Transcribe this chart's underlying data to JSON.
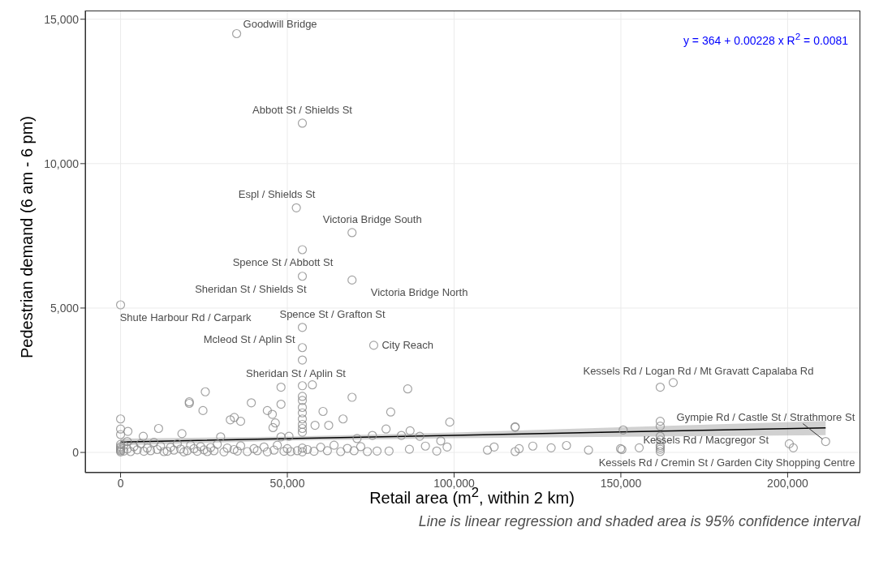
{
  "chart_data": {
    "type": "scatter",
    "xlabel": "Retail area (m$^{2}$, within 2 km)",
    "ylabel": "Pedestrian demand (6 am - 6 pm)",
    "xlim": [
      -10600,
      221800
    ],
    "ylim": [
      -700,
      15300
    ],
    "xticks": [
      0,
      {
        "value": 50000,
        "label": "50,000"
      },
      {
        "value": 100000,
        "label": "100,000"
      },
      {
        "value": 150000,
        "label": "150,000"
      },
      {
        "value": 200000,
        "label": "200,000"
      }
    ],
    "yticks": [
      0,
      {
        "value": 5000,
        "label": "5,000"
      },
      {
        "value": 10000,
        "label": "10,000"
      },
      {
        "value": 15000,
        "label": "15,000"
      }
    ],
    "grid": true,
    "marker": "circle",
    "series": [
      {
        "color": "#8c8c8c",
        "x": [
          34800,
          54500,
          52700,
          69400,
          54500,
          54500,
          69400,
          0,
          54500,
          54500,
          54500,
          75900,
          161800,
          165700,
          211400,
          161800,
          161800,
          0,
          0,
          2200,
          0,
          11400,
          6800,
          18400,
          20600,
          20600,
          24700,
          25400,
          30000,
          39200,
          32900,
          34100,
          36000,
          44000,
          45500,
          46400,
          45700,
          48100,
          48100,
          48100,
          54500,
          57500,
          54500,
          54500,
          54500,
          54500,
          54500,
          54500,
          54500,
          54500,
          60700,
          58300,
          62400,
          66700,
          50500,
          69400,
          86100,
          81000,
          98700,
          79600,
          86800,
          75500,
          70900,
          84200,
          89700,
          96000,
          118300,
          118300,
          91400,
          97900,
          94800,
          86600,
          80500,
          76900,
          110000,
          112000,
          118300,
          119500,
          123600,
          129100,
          133700,
          140300,
          150700,
          149900,
          150300,
          155500,
          161800,
          161800,
          161800,
          161800,
          161800,
          161800,
          200500,
          201700,
          0,
          0,
          0,
          0,
          0,
          0,
          1000,
          1000,
          2000,
          2000,
          3000,
          4000,
          5000,
          6000,
          7000,
          8000,
          9000,
          10000,
          11000,
          12000,
          13000,
          14000,
          15000,
          16000,
          17000,
          18000,
          19000,
          20000,
          21000,
          22000,
          23000,
          24000,
          25000,
          26000,
          27000,
          28000,
          29000,
          31000,
          32000,
          34000,
          35000,
          36000,
          38000,
          40000,
          41000,
          43000,
          44000,
          46000,
          47000,
          49000,
          50000,
          51000,
          53000,
          54500,
          54500,
          56000,
          58000,
          60000,
          62000,
          64000,
          66000,
          68000,
          70000,
          72000,
          74000
        ],
        "values": [
          14500,
          11400,
          8470,
          7610,
          7020,
          6100,
          5970,
          5110,
          4330,
          3630,
          3200,
          3710,
          2260,
          2420,
          380,
          430,
          30,
          1160,
          810,
          730,
          620,
          830,
          560,
          650,
          1750,
          1700,
          1450,
          2100,
          540,
          1720,
          1130,
          1210,
          1080,
          1450,
          1320,
          1020,
          860,
          2260,
          1670,
          540,
          2310,
          2340,
          1940,
          1800,
          1560,
          1370,
          1160,
          970,
          830,
          700,
          1420,
          940,
          940,
          1160,
          560,
          1910,
          2200,
          1400,
          1050,
          810,
          750,
          590,
          480,
          590,
          560,
          400,
          890,
          870,
          220,
          190,
          50,
          110,
          50,
          50,
          80,
          190,
          30,
          130,
          220,
          160,
          240,
          80,
          780,
          130,
          100,
          160,
          1080,
          910,
          560,
          240,
          110,
          180,
          300,
          160,
          20,
          60,
          100,
          150,
          200,
          280,
          50,
          250,
          120,
          380,
          30,
          200,
          90,
          300,
          40,
          150,
          60,
          350,
          100,
          220,
          30,
          40,
          180,
          80,
          300,
          120,
          20,
          60,
          250,
          130,
          40,
          200,
          90,
          30,
          170,
          60,
          280,
          20,
          150,
          100,
          50,
          230,
          30,
          130,
          60,
          190,
          20,
          80,
          250,
          40,
          130,
          30,
          60,
          20,
          150,
          100,
          40,
          180,
          60,
          250,
          30,
          140,
          60,
          200,
          30
        ]
      },
      {
        "type": "line",
        "color": "#000000",
        "marker": "none",
        "line_style": "solid",
        "x": [
          0,
          50000,
          100000,
          150000,
          211400
        ],
        "values": [
          360,
          480,
          590,
          710,
          850
        ],
        "lower": [
          250,
          410,
          490,
          540,
          600
        ],
        "upper": [
          480,
          550,
          690,
          870,
          1090
        ]
      }
    ],
    "annotations": [
      {
        "text": "Goodwill Bridge",
        "x": 34800,
        "y": 14500
      },
      {
        "text": "Abbott St / Shields St",
        "x": 54500,
        "y": 11400
      },
      {
        "text": "Espl / Shields St",
        "x": 52700,
        "y": 8470
      },
      {
        "text": "Victoria Bridge South",
        "x": 69400,
        "y": 7610
      },
      {
        "text": "Spence St / Abbott St",
        "x": 54500,
        "y": 7020
      },
      {
        "text": "Sheridan St / Shields St",
        "x": 54500,
        "y": 6100
      },
      {
        "text": "Victoria Bridge North",
        "x": 69400,
        "y": 5970
      },
      {
        "text": "Shute Harbour Rd / Carpark",
        "x": 0,
        "y": 5110
      },
      {
        "text": "Spence St / Grafton St",
        "x": 54500,
        "y": 4330
      },
      {
        "text": "Mcleod St / Aplin St",
        "x": 54500,
        "y": 3630
      },
      {
        "text": "Sheridan St / Aplin St",
        "x": 54500,
        "y": 3200
      },
      {
        "text": "City Reach",
        "x": 75900,
        "y": 3710
      },
      {
        "text": "Kessels Rd / Logan Rd / Mt Gravatt Capalaba Rd",
        "x": 165700,
        "y": 2420
      },
      {
        "text": "Gympie Rd / Castle St / Strathmore St",
        "x": 211400,
        "y": 380
      },
      {
        "text": "Kessels Rd / Macgregor St",
        "x": 161800,
        "y": 430
      },
      {
        "text": "Kessels Rd / Cremin St / Garden City Shopping Centre",
        "x": 161800,
        "y": 30
      },
      "y = 364 + 0.00228 x   R$^{2}$ = 0.0081",
      "Line is linear regression and shaded area is 95% confidence interval"
    ]
  }
}
